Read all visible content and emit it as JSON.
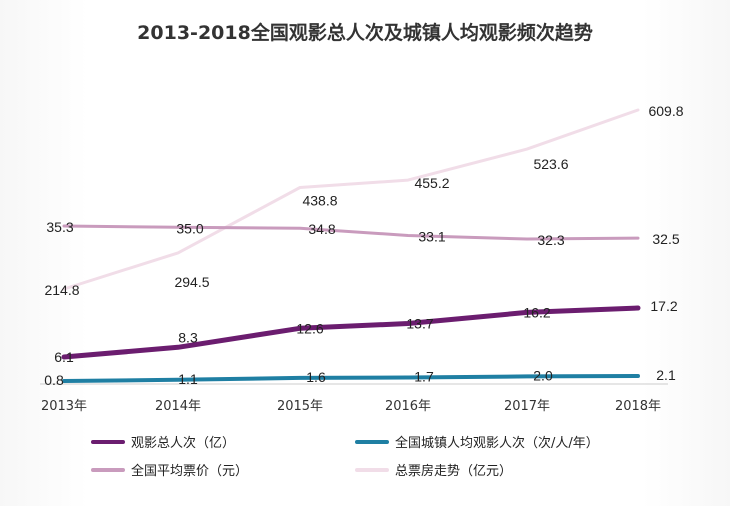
{
  "title": "2013-2018全国观影总人次及城镇人均观影频次趋势",
  "chart_data": {
    "type": "line",
    "title": "2013-2018全国观影总人次及城镇人均观影频次趋势",
    "categories": [
      "2013年",
      "2014年",
      "2015年",
      "2016年",
      "2017年",
      "2018年"
    ],
    "series": [
      {
        "name": "观影总人次（亿）",
        "color": "#6b1d6f",
        "values": [
          6.1,
          8.3,
          12.6,
          13.7,
          16.2,
          17.2
        ],
        "labels": [
          "6.1",
          "8.3",
          "12.6",
          "13.7",
          "16.2",
          "17.2"
        ]
      },
      {
        "name": "全国城镇人均观影人次（次/人/年）",
        "color": "#1f7fa3",
        "values": [
          0.8,
          1.1,
          1.6,
          1.7,
          2.0,
          2.1
        ],
        "labels": [
          "0.8",
          "1.1",
          "1.6",
          "1.7",
          "2.0",
          "2.1"
        ]
      },
      {
        "name": "全国平均票价（元）",
        "color": "#c99bbd",
        "values": [
          35.3,
          35.0,
          34.8,
          33.1,
          32.3,
          32.5
        ],
        "labels": [
          "35.3",
          "35.0",
          "34.8",
          "33.1",
          "32.3",
          "32.5"
        ]
      },
      {
        "name": "总票房走势（亿元）",
        "color": "#f1dde8",
        "values": [
          214.8,
          294.5,
          438.8,
          455.2,
          523.6,
          609.8
        ],
        "labels": [
          "214.8",
          "294.5",
          "438.8",
          "455.2",
          "523.6",
          "609.8"
        ]
      }
    ],
    "legend_position": "bottom",
    "grid": false
  }
}
